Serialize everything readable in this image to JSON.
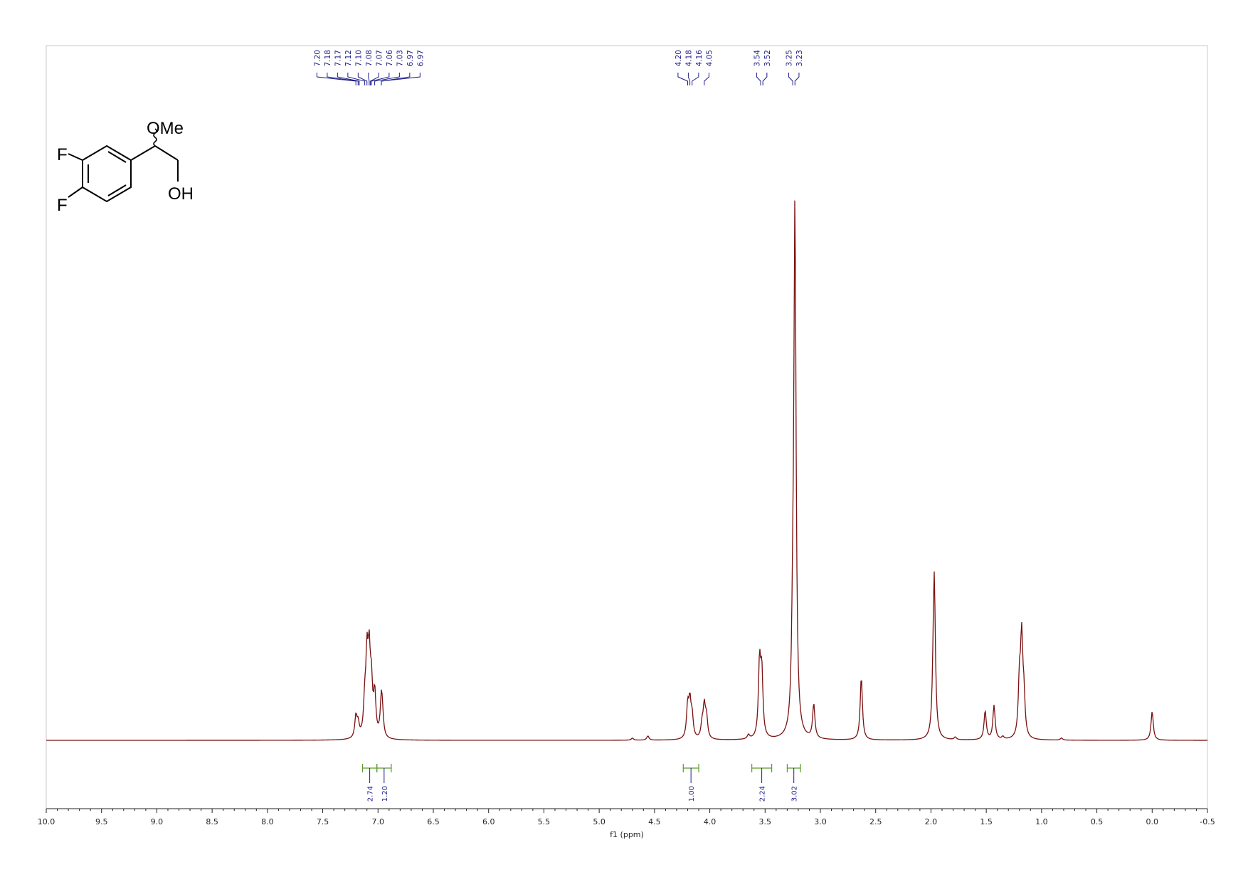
{
  "chart_data": {
    "type": "line",
    "xlabel": "f1 (ppm)",
    "xlim": [
      10.0,
      -0.5
    ],
    "x_ticks": [
      "10.0",
      "9.5",
      "9.0",
      "8.5",
      "8.0",
      "7.5",
      "7.0",
      "6.5",
      "6.0",
      "5.5",
      "5.0",
      "4.5",
      "4.0",
      "3.5",
      "3.0",
      "2.5",
      "2.0",
      "1.5",
      "1.0",
      "0.5",
      "0.0",
      "-0.5"
    ],
    "x_tick_values": [
      10.0,
      9.5,
      9.0,
      8.5,
      8.0,
      7.5,
      7.0,
      6.5,
      6.0,
      5.5,
      5.0,
      4.5,
      4.0,
      3.5,
      3.0,
      2.5,
      2.0,
      1.5,
      1.0,
      0.5,
      0.0,
      -0.5
    ],
    "spectrum_color": "#7a1010",
    "peak_label_color": "#1c1c8a",
    "integral_color": "#5a9a2a",
    "peak_groups": [
      {
        "labels": [
          "7.20",
          "7.18",
          "7.17",
          "7.12",
          "7.10",
          "7.08",
          "7.07",
          "7.06",
          "7.03",
          "6.97",
          "6.97"
        ]
      },
      {
        "labels": [
          "4.20",
          "4.18",
          "4.16",
          "4.05"
        ]
      },
      {
        "labels": [
          "3.54",
          "3.52"
        ]
      },
      {
        "labels": [
          "3.25",
          "3.23"
        ]
      }
    ],
    "peaks": [
      {
        "ppm": 7.2,
        "h": 0.04
      },
      {
        "ppm": 7.18,
        "h": 0.025
      },
      {
        "ppm": 7.12,
        "h": 0.06
      },
      {
        "ppm": 7.1,
        "h": 0.14
      },
      {
        "ppm": 7.08,
        "h": 0.14
      },
      {
        "ppm": 7.06,
        "h": 0.09
      },
      {
        "ppm": 7.03,
        "h": 0.08
      },
      {
        "ppm": 6.97,
        "h": 0.07
      },
      {
        "ppm": 6.96,
        "h": 0.03
      },
      {
        "ppm": 4.7,
        "h": 0.004
      },
      {
        "ppm": 4.56,
        "h": 0.008
      },
      {
        "ppm": 4.2,
        "h": 0.06
      },
      {
        "ppm": 4.18,
        "h": 0.065
      },
      {
        "ppm": 4.16,
        "h": 0.04
      },
      {
        "ppm": 4.07,
        "h": 0.025
      },
      {
        "ppm": 4.05,
        "h": 0.06
      },
      {
        "ppm": 4.03,
        "h": 0.04
      },
      {
        "ppm": 3.65,
        "h": 0.008
      },
      {
        "ppm": 3.55,
        "h": 0.14
      },
      {
        "ppm": 3.53,
        "h": 0.12
      },
      {
        "ppm": 3.25,
        "h": 0.14
      },
      {
        "ppm": 3.23,
        "h": 1.0
      },
      {
        "ppm": 3.06,
        "h": 0.065
      },
      {
        "ppm": 2.63,
        "h": 0.12
      },
      {
        "ppm": 1.98,
        "h": 0.05
      },
      {
        "ppm": 1.97,
        "h": 0.29
      },
      {
        "ppm": 1.78,
        "h": 0.005
      },
      {
        "ppm": 1.51,
        "h": 0.055
      },
      {
        "ppm": 1.43,
        "h": 0.065
      },
      {
        "ppm": 1.35,
        "h": 0.005
      },
      {
        "ppm": 1.2,
        "h": 0.1
      },
      {
        "ppm": 1.18,
        "h": 0.18
      },
      {
        "ppm": 1.16,
        "h": 0.07
      },
      {
        "ppm": 0.82,
        "h": 0.004
      },
      {
        "ppm": 0.0,
        "h": 0.055
      }
    ],
    "integrals": [
      {
        "from": 7.14,
        "to": 7.01,
        "value": "2.74"
      },
      {
        "from": 7.01,
        "to": 6.88,
        "value": "1.20"
      },
      {
        "from": 4.24,
        "to": 4.1,
        "value": "1.00"
      },
      {
        "from": 3.62,
        "to": 3.44,
        "value": "2.24"
      },
      {
        "from": 3.3,
        "to": 3.18,
        "value": "3.02"
      }
    ]
  },
  "structure": {
    "labels": [
      "OMe",
      "F",
      "F",
      "OH"
    ]
  }
}
